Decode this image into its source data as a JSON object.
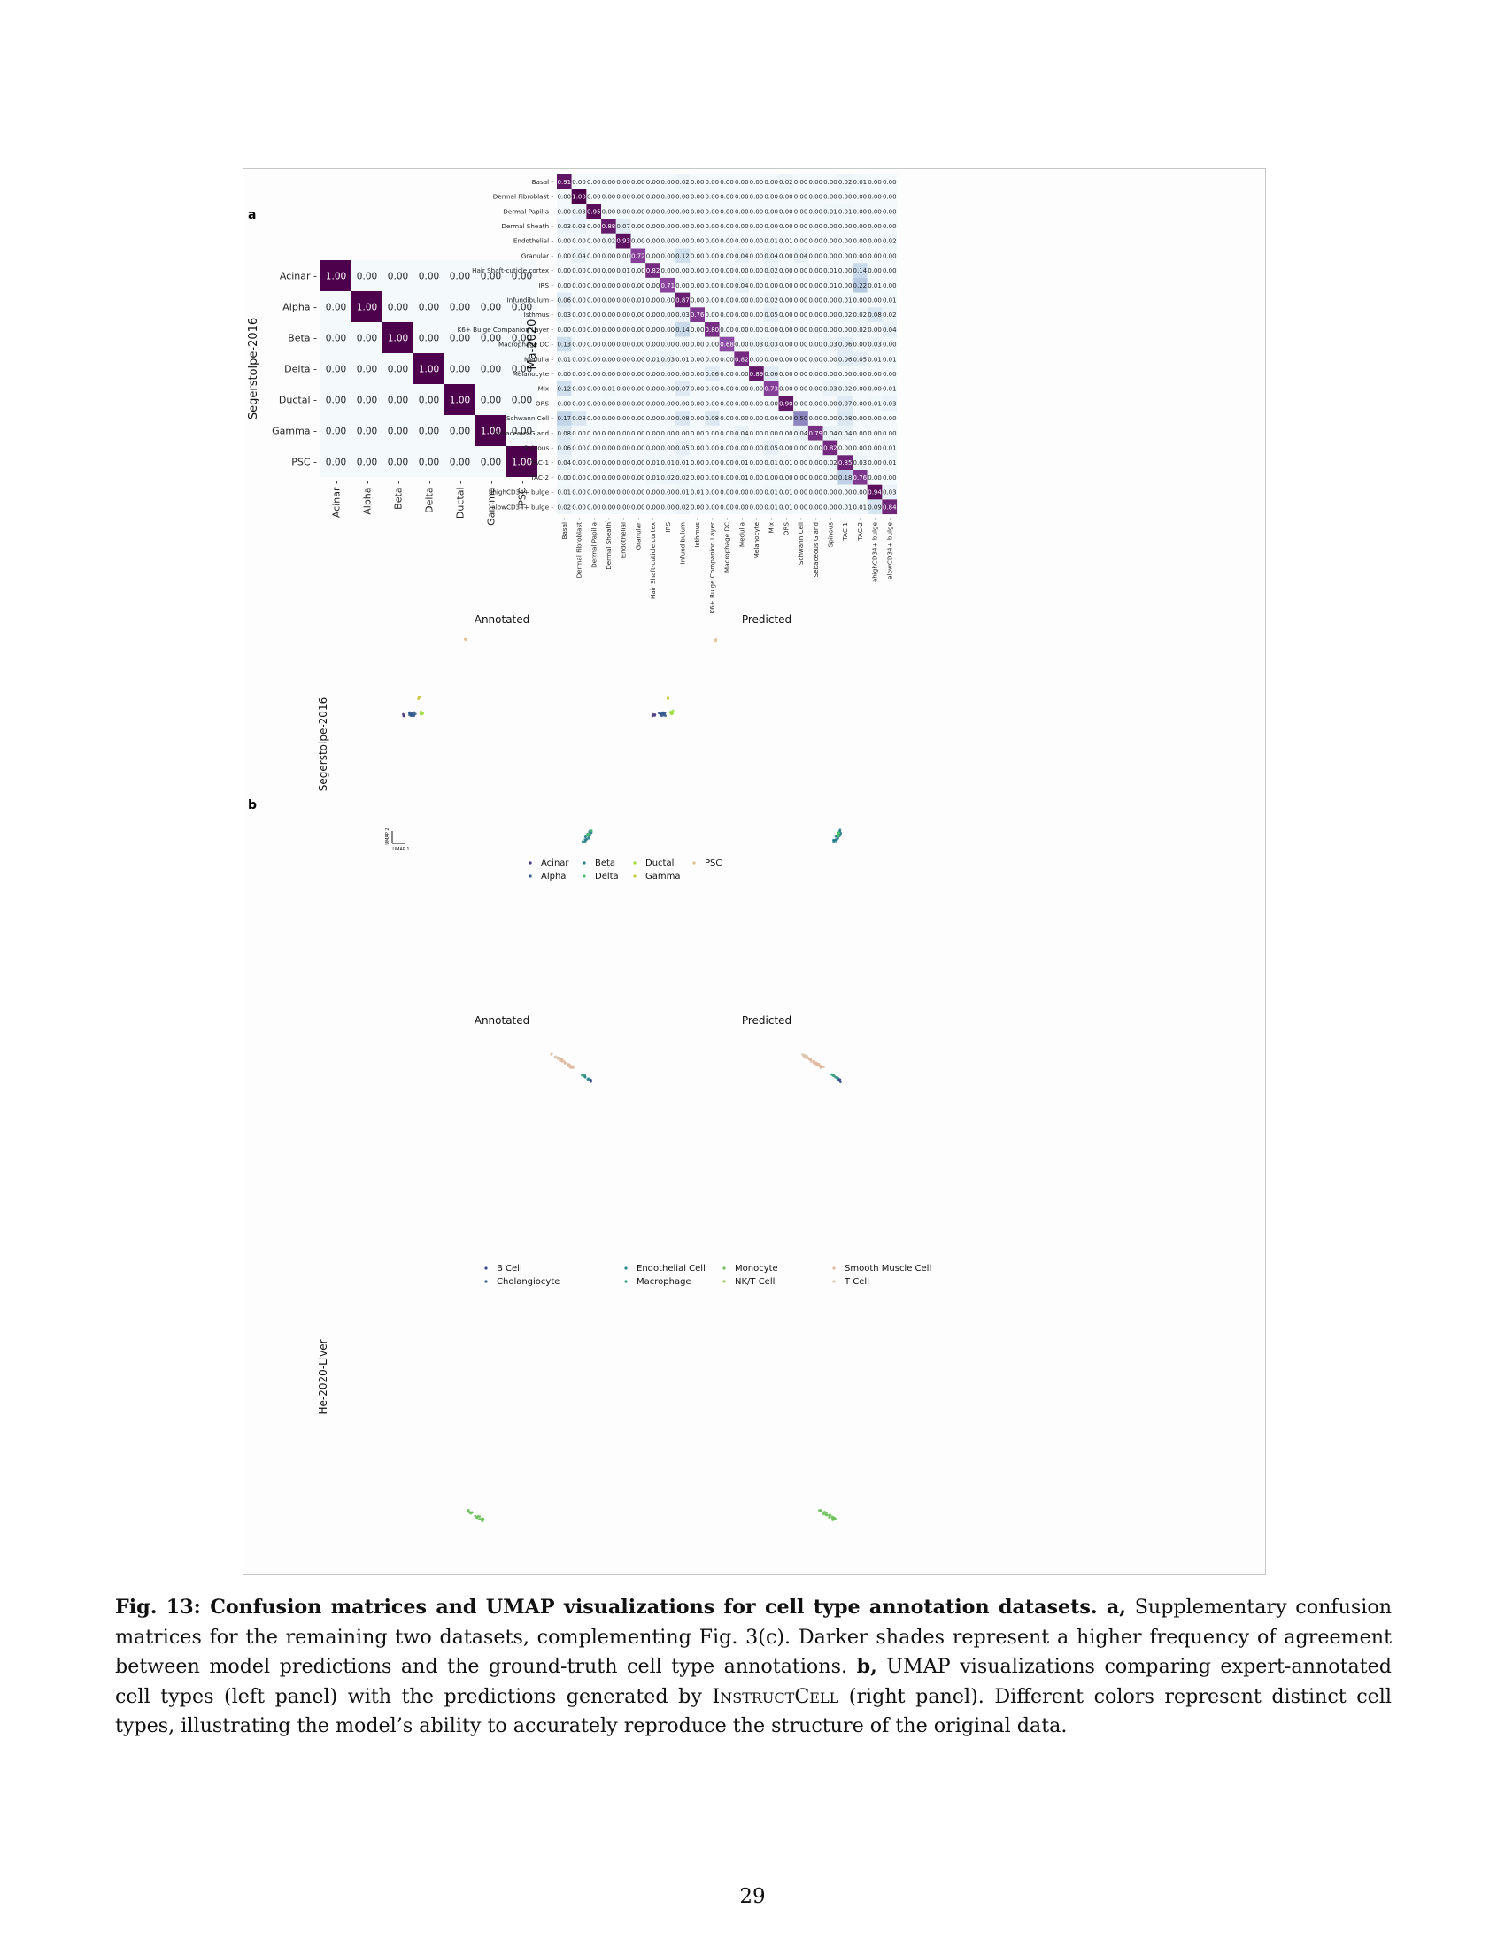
{
  "panel_a_label": "a",
  "panel_b_label": "b",
  "chart_data": [
    {
      "type": "heatmap",
      "ylabel": "Segerstolpe-2016",
      "labels": [
        "Acinar",
        "Alpha",
        "Beta",
        "Delta",
        "Ductal",
        "Gamma",
        "PSC"
      ],
      "values": [
        [
          1.0,
          0.0,
          0.0,
          0.0,
          0.0,
          0.0,
          0.0
        ],
        [
          0.0,
          1.0,
          0.0,
          0.0,
          0.0,
          0.0,
          0.0
        ],
        [
          0.0,
          0.0,
          1.0,
          0.0,
          0.0,
          0.0,
          0.0
        ],
        [
          0.0,
          0.0,
          0.0,
          1.0,
          0.0,
          0.0,
          0.0
        ],
        [
          0.0,
          0.0,
          0.0,
          0.0,
          1.0,
          0.0,
          0.0
        ],
        [
          0.0,
          0.0,
          0.0,
          0.0,
          0.0,
          1.0,
          0.0
        ],
        [
          0.0,
          0.0,
          0.0,
          0.0,
          0.0,
          0.0,
          1.0
        ]
      ]
    },
    {
      "type": "heatmap",
      "ylabel": "Ma-2020",
      "labels": [
        "Basal",
        "Dermal Fibroblast",
        "Dermal Papilla",
        "Dermal Sheath",
        "Endothelial",
        "Granular",
        "Hair Shaft-cuticle.cortex",
        "IRS",
        "Infundibulum",
        "Isthmus",
        "K6+ Bulge Companion Layer",
        "Macrophage DC",
        "Medulla",
        "Melanocyte",
        "Mix",
        "ORS",
        "Schwann Cell",
        "Sebaceous Gland",
        "Spinous",
        "TAC-1",
        "TAC-2",
        "ahighCD34+ bulge",
        "alowCD34+ bulge"
      ],
      "values": [
        [
          0.91,
          0.0,
          0.0,
          0.0,
          0.0,
          0.0,
          0.0,
          0.0,
          0.02,
          0.0,
          0.0,
          0.0,
          0.0,
          0.0,
          0.0,
          0.02,
          0.0,
          0.0,
          0.0,
          0.02,
          0.01,
          0.0,
          0.0
        ],
        [
          0.0,
          1.0,
          0.0,
          0.0,
          0.0,
          0.0,
          0.0,
          0.0,
          0.0,
          0.0,
          0.0,
          0.0,
          0.0,
          0.0,
          0.0,
          0.0,
          0.0,
          0.0,
          0.0,
          0.0,
          0.0,
          0.0,
          0.0
        ],
        [
          0.0,
          0.03,
          0.95,
          0.0,
          0.0,
          0.0,
          0.0,
          0.0,
          0.0,
          0.0,
          0.0,
          0.0,
          0.0,
          0.0,
          0.0,
          0.0,
          0.0,
          0.0,
          0.01,
          0.01,
          0.0,
          0.0,
          0.0
        ],
        [
          0.03,
          0.03,
          0.0,
          0.88,
          0.07,
          0.0,
          0.0,
          0.0,
          0.0,
          0.0,
          0.0,
          0.0,
          0.0,
          0.0,
          0.0,
          0.0,
          0.0,
          0.0,
          0.0,
          0.0,
          0.0,
          0.0,
          0.0
        ],
        [
          0.0,
          0.0,
          0.0,
          0.02,
          0.93,
          0.0,
          0.0,
          0.0,
          0.0,
          0.0,
          0.0,
          0.0,
          0.0,
          0.0,
          0.01,
          0.01,
          0.0,
          0.0,
          0.0,
          0.0,
          0.0,
          0.0,
          0.02
        ],
        [
          0.0,
          0.04,
          0.0,
          0.0,
          0.0,
          0.72,
          0.0,
          0.0,
          0.12,
          0.0,
          0.0,
          0.0,
          0.04,
          0.0,
          0.04,
          0.0,
          0.04,
          0.0,
          0.0,
          0.0,
          0.0,
          0.0,
          0.0
        ],
        [
          0.0,
          0.0,
          0.0,
          0.0,
          0.01,
          0.0,
          0.82,
          0.0,
          0.0,
          0.0,
          0.0,
          0.0,
          0.0,
          0.0,
          0.02,
          0.0,
          0.0,
          0.0,
          0.01,
          0.0,
          0.14,
          0.0,
          0.0
        ],
        [
          0.0,
          0.0,
          0.0,
          0.0,
          0.0,
          0.0,
          0.0,
          0.71,
          0.0,
          0.0,
          0.0,
          0.0,
          0.04,
          0.0,
          0.0,
          0.0,
          0.0,
          0.0,
          0.01,
          0.0,
          0.22,
          0.01,
          0.0
        ],
        [
          0.06,
          0.0,
          0.0,
          0.0,
          0.0,
          0.01,
          0.0,
          0.0,
          0.87,
          0.0,
          0.0,
          0.0,
          0.0,
          0.0,
          0.02,
          0.0,
          0.0,
          0.0,
          0.0,
          0.01,
          0.0,
          0.0,
          0.01
        ],
        [
          0.03,
          0.0,
          0.0,
          0.0,
          0.0,
          0.0,
          0.0,
          0.0,
          0.03,
          0.76,
          0.0,
          0.0,
          0.0,
          0.0,
          0.05,
          0.0,
          0.0,
          0.0,
          0.0,
          0.02,
          0.02,
          0.08,
          0.02
        ],
        [
          0.0,
          0.0,
          0.0,
          0.0,
          0.0,
          0.0,
          0.0,
          0.0,
          0.14,
          0.0,
          0.8,
          0.0,
          0.0,
          0.0,
          0.0,
          0.0,
          0.0,
          0.0,
          0.0,
          0.0,
          0.02,
          0.0,
          0.04
        ],
        [
          0.13,
          0.0,
          0.0,
          0.0,
          0.0,
          0.0,
          0.0,
          0.0,
          0.0,
          0.0,
          0.0,
          0.68,
          0.0,
          0.03,
          0.03,
          0.0,
          0.0,
          0.0,
          0.03,
          0.06,
          0.0,
          0.03,
          0.0
        ],
        [
          0.01,
          0.0,
          0.0,
          0.0,
          0.0,
          0.0,
          0.01,
          0.03,
          0.01,
          0.0,
          0.0,
          0.0,
          0.82,
          0.0,
          0.0,
          0.0,
          0.0,
          0.0,
          0.0,
          0.06,
          0.05,
          0.01,
          0.01
        ],
        [
          0.0,
          0.0,
          0.0,
          0.0,
          0.0,
          0.0,
          0.0,
          0.0,
          0.0,
          0.0,
          0.06,
          0.0,
          0.0,
          0.89,
          0.06,
          0.0,
          0.0,
          0.0,
          0.0,
          0.0,
          0.0,
          0.0,
          0.0
        ],
        [
          0.12,
          0.0,
          0.0,
          0.01,
          0.0,
          0.0,
          0.0,
          0.0,
          0.07,
          0.0,
          0.0,
          0.0,
          0.0,
          0.0,
          0.73,
          0.0,
          0.0,
          0.0,
          0.03,
          0.02,
          0.0,
          0.0,
          0.01
        ],
        [
          0.0,
          0.0,
          0.0,
          0.0,
          0.0,
          0.0,
          0.0,
          0.0,
          0.0,
          0.0,
          0.0,
          0.0,
          0.0,
          0.0,
          0.0,
          0.9,
          0.0,
          0.0,
          0.0,
          0.07,
          0.0,
          0.01,
          0.03
        ],
        [
          0.17,
          0.08,
          0.0,
          0.0,
          0.0,
          0.0,
          0.0,
          0.0,
          0.08,
          0.0,
          0.08,
          0.0,
          0.0,
          0.0,
          0.0,
          0.0,
          0.5,
          0.0,
          0.0,
          0.08,
          0.0,
          0.0,
          0.0
        ],
        [
          0.08,
          0.0,
          0.0,
          0.0,
          0.0,
          0.0,
          0.0,
          0.0,
          0.0,
          0.0,
          0.0,
          0.0,
          0.04,
          0.0,
          0.0,
          0.0,
          0.04,
          0.79,
          0.04,
          0.04,
          0.0,
          0.0,
          0.0
        ],
        [
          0.06,
          0.0,
          0.0,
          0.0,
          0.0,
          0.0,
          0.0,
          0.0,
          0.05,
          0.0,
          0.0,
          0.0,
          0.0,
          0.0,
          0.05,
          0.0,
          0.0,
          0.0,
          0.82,
          0.0,
          0.0,
          0.0,
          0.01
        ],
        [
          0.04,
          0.0,
          0.0,
          0.0,
          0.0,
          0.0,
          0.01,
          0.01,
          0.01,
          0.0,
          0.0,
          0.0,
          0.01,
          0.0,
          0.01,
          0.01,
          0.0,
          0.0,
          0.02,
          0.85,
          0.03,
          0.0,
          0.01
        ],
        [
          0.0,
          0.0,
          0.0,
          0.0,
          0.0,
          0.0,
          0.01,
          0.02,
          0.02,
          0.0,
          0.0,
          0.0,
          0.01,
          0.0,
          0.0,
          0.0,
          0.0,
          0.0,
          0.0,
          0.18,
          0.76,
          0.0,
          0.0
        ],
        [
          0.01,
          0.0,
          0.0,
          0.0,
          0.0,
          0.0,
          0.0,
          0.0,
          0.01,
          0.01,
          0.0,
          0.0,
          0.0,
          0.0,
          0.01,
          0.01,
          0.0,
          0.0,
          0.0,
          0.0,
          0.0,
          0.94,
          0.03
        ],
        [
          0.02,
          0.0,
          0.0,
          0.0,
          0.0,
          0.0,
          0.0,
          0.0,
          0.02,
          0.0,
          0.0,
          0.0,
          0.0,
          0.0,
          0.01,
          0.01,
          0.0,
          0.0,
          0.0,
          0.01,
          0.01,
          0.09,
          0.84
        ]
      ]
    },
    {
      "type": "scatter",
      "row_label": "Segerstolpe-2016",
      "left_title": "Annotated",
      "right_title": "Predicted",
      "axis_x": "UMAP 1",
      "axis_y": "UMAP 2",
      "legend": [
        {
          "name": "Acinar",
          "color": "#46327e"
        },
        {
          "name": "Alpha",
          "color": "#365c8d"
        },
        {
          "name": "Beta",
          "color": "#277f8e"
        },
        {
          "name": "Delta",
          "color": "#4ac16d"
        },
        {
          "name": "Ductal",
          "color": "#a0da39"
        },
        {
          "name": "Gamma",
          "color": "#c8c83a"
        },
        {
          "name": "PSC",
          "color": "#e0c090"
        }
      ]
    },
    {
      "type": "scatter",
      "row_label": "He-2020-Liver",
      "left_title": "Annotated",
      "right_title": "Predicted",
      "legend": [
        {
          "name": "B Cell",
          "color": "#3b4a8c"
        },
        {
          "name": "Cholangiocyte",
          "color": "#35628d"
        },
        {
          "name": "Endothelial Cell",
          "color": "#2a8a8a"
        },
        {
          "name": "Macrophage",
          "color": "#3aa37a"
        },
        {
          "name": "Monocyte",
          "color": "#6cbf5a"
        },
        {
          "name": "NK/T Cell",
          "color": "#9dc85a"
        },
        {
          "name": "Smooth Muscle Cell",
          "color": "#e0b8a0"
        },
        {
          "name": "T Cell",
          "color": "#d8c8b0"
        }
      ]
    }
  ],
  "caption": {
    "bold_lead": "Fig. 13: Confusion matrices and UMAP visualizations for cell type annotation datasets. a,",
    "text_a": " Supplementary confusion matrices for the remaining two datasets, complementing Fig. 3(c).  Darker shades represent a higher frequency of agreement between model predictions and the ground-truth cell type annotations. ",
    "bold_b": "b,",
    "text_b1": " UMAP visualizations comparing expert-annotated cell types (left panel) with the predictions generated by ",
    "model_name": "InstructCell",
    "text_b2": " (right panel). Different colors represent distinct cell types, illustrating the model’s ability to accurately reproduce the structure of the original data."
  },
  "page_number": "29"
}
